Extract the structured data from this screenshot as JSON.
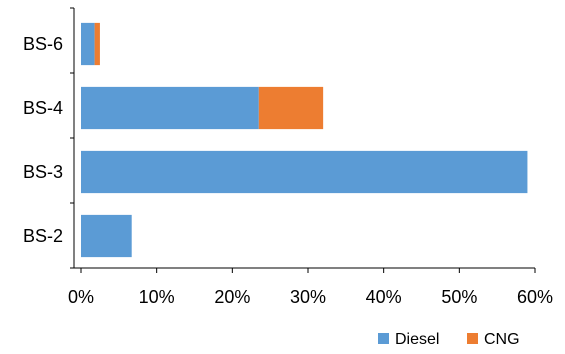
{
  "chart_data": {
    "type": "bar",
    "orientation": "horizontal",
    "stacked": true,
    "title": "",
    "xlabel": "",
    "ylabel": "",
    "categories": [
      "BS-6",
      "BS-4",
      "BS-3",
      "BS-2"
    ],
    "series": [
      {
        "name": "Diesel",
        "color": "#5B9BD5",
        "values": [
          1.8,
          23.5,
          59.0,
          6.7
        ]
      },
      {
        "name": "CNG",
        "color": "#ED7D31",
        "values": [
          0.7,
          8.5,
          0,
          0
        ]
      }
    ],
    "xlim": [
      0,
      60
    ],
    "xticks": [
      0,
      10,
      20,
      30,
      40,
      50,
      60
    ],
    "xtick_labels": [
      "0%",
      "10%",
      "20%",
      "30%",
      "40%",
      "50%",
      "60%"
    ],
    "grid": false,
    "legend": {
      "position": "bottom-right",
      "entries": [
        "Diesel",
        "CNG"
      ]
    }
  }
}
